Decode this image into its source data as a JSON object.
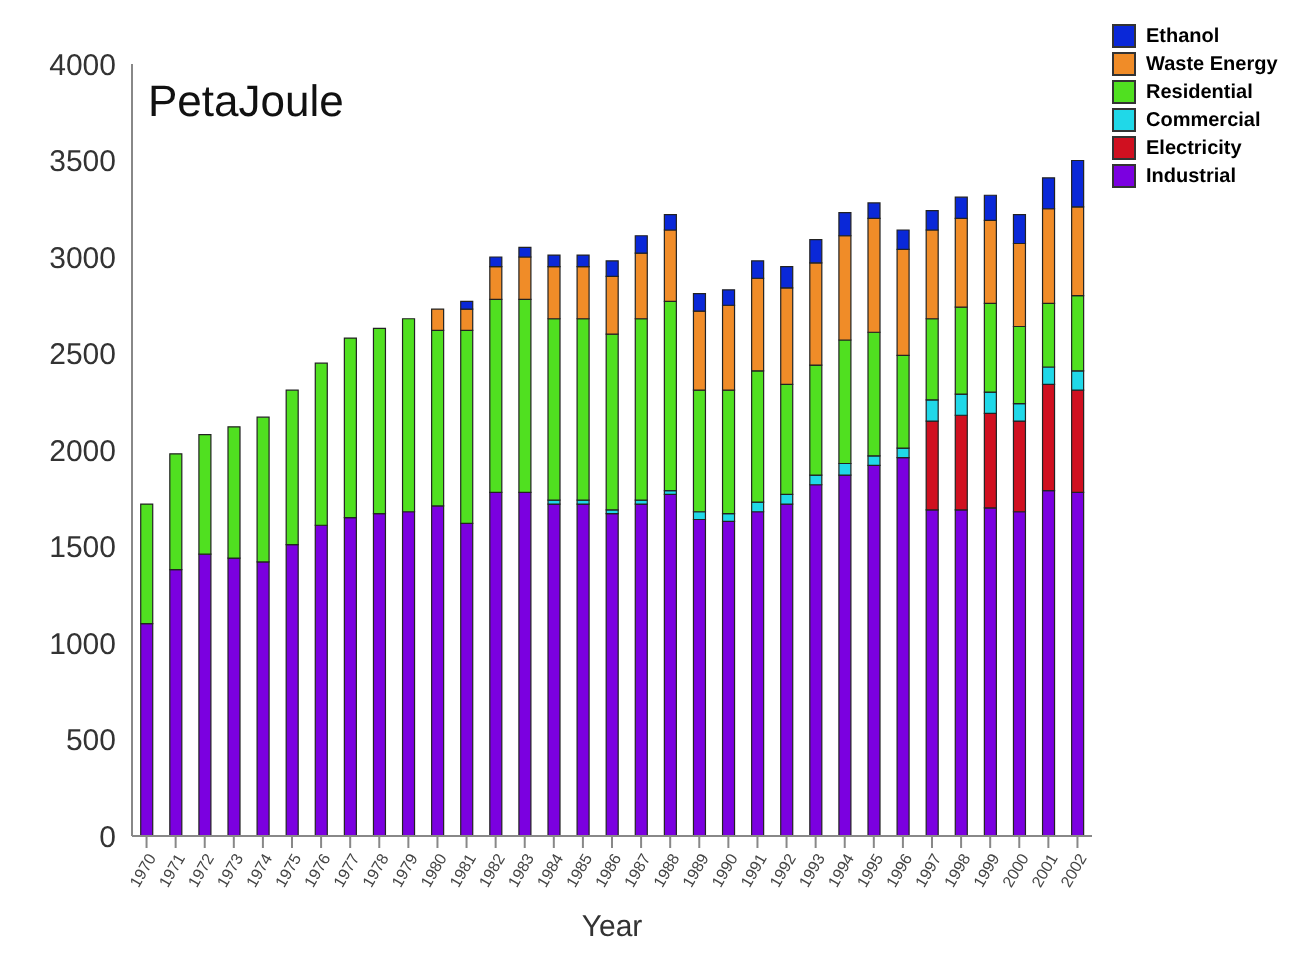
{
  "chart_data": {
    "type": "bar",
    "stacked": true,
    "ylabel": "PetaJoule",
    "xlabel": "Year",
    "categories": [
      "1970",
      "1971",
      "1972",
      "1973",
      "1974",
      "1975",
      "1976",
      "1977",
      "1978",
      "1979",
      "1980",
      "1981",
      "1982",
      "1983",
      "1984",
      "1985",
      "1986",
      "1987",
      "1988",
      "1989",
      "1990",
      "1991",
      "1992",
      "1993",
      "1994",
      "1995",
      "1996",
      "1997",
      "1998",
      "1999",
      "2000",
      "2001",
      "2002"
    ],
    "series": [
      {
        "name": "Industrial",
        "color": "#7b00e0",
        "values": [
          1100,
          1380,
          1460,
          1440,
          1420,
          1510,
          1610,
          1650,
          1670,
          1680,
          1710,
          1620,
          1780,
          1780,
          1720,
          1720,
          1670,
          1720,
          1770,
          1640,
          1630,
          1680,
          1720,
          1820,
          1870,
          1920,
          1960,
          1690,
          1690,
          1700,
          1680,
          1790,
          1780
        ]
      },
      {
        "name": "Electricity",
        "color": "#d01020",
        "values": [
          null,
          null,
          null,
          null,
          null,
          null,
          null,
          null,
          null,
          null,
          null,
          null,
          null,
          null,
          null,
          null,
          null,
          null,
          null,
          null,
          null,
          null,
          null,
          null,
          null,
          null,
          null,
          460,
          490,
          490,
          470,
          550,
          530
        ]
      },
      {
        "name": "Commercial",
        "color": "#20d8e8",
        "values": [
          null,
          null,
          null,
          null,
          null,
          null,
          null,
          null,
          null,
          null,
          null,
          null,
          null,
          null,
          20,
          20,
          20,
          20,
          20,
          40,
          40,
          50,
          50,
          50,
          60,
          50,
          50,
          110,
          110,
          110,
          90,
          90,
          100
        ]
      },
      {
        "name": "Residential",
        "color": "#50e020",
        "values": [
          620,
          600,
          620,
          680,
          750,
          800,
          840,
          930,
          960,
          1000,
          910,
          1000,
          1000,
          1000,
          940,
          940,
          910,
          940,
          980,
          630,
          640,
          680,
          570,
          570,
          640,
          640,
          480,
          420,
          450,
          460,
          400,
          330,
          390
        ]
      },
      {
        "name": "Waste Energy",
        "color": "#f08c28",
        "values": [
          null,
          null,
          null,
          null,
          null,
          null,
          null,
          null,
          null,
          null,
          110,
          110,
          170,
          220,
          270,
          270,
          300,
          340,
          370,
          410,
          440,
          480,
          500,
          530,
          540,
          590,
          550,
          460,
          460,
          430,
          430,
          490,
          460
        ]
      },
      {
        "name": "Ethanol",
        "color": "#0a28d8",
        "values": [
          null,
          null,
          null,
          null,
          null,
          null,
          null,
          null,
          null,
          null,
          null,
          40,
          50,
          50,
          60,
          60,
          80,
          90,
          80,
          90,
          80,
          90,
          110,
          120,
          120,
          80,
          100,
          100,
          110,
          130,
          150,
          160,
          240
        ]
      }
    ],
    "ylim": [
      0,
      4000
    ],
    "yticks": [
      0,
      500,
      1000,
      1500,
      2000,
      2500,
      3000,
      3500,
      4000
    ],
    "grid": false,
    "legend": "top right"
  }
}
